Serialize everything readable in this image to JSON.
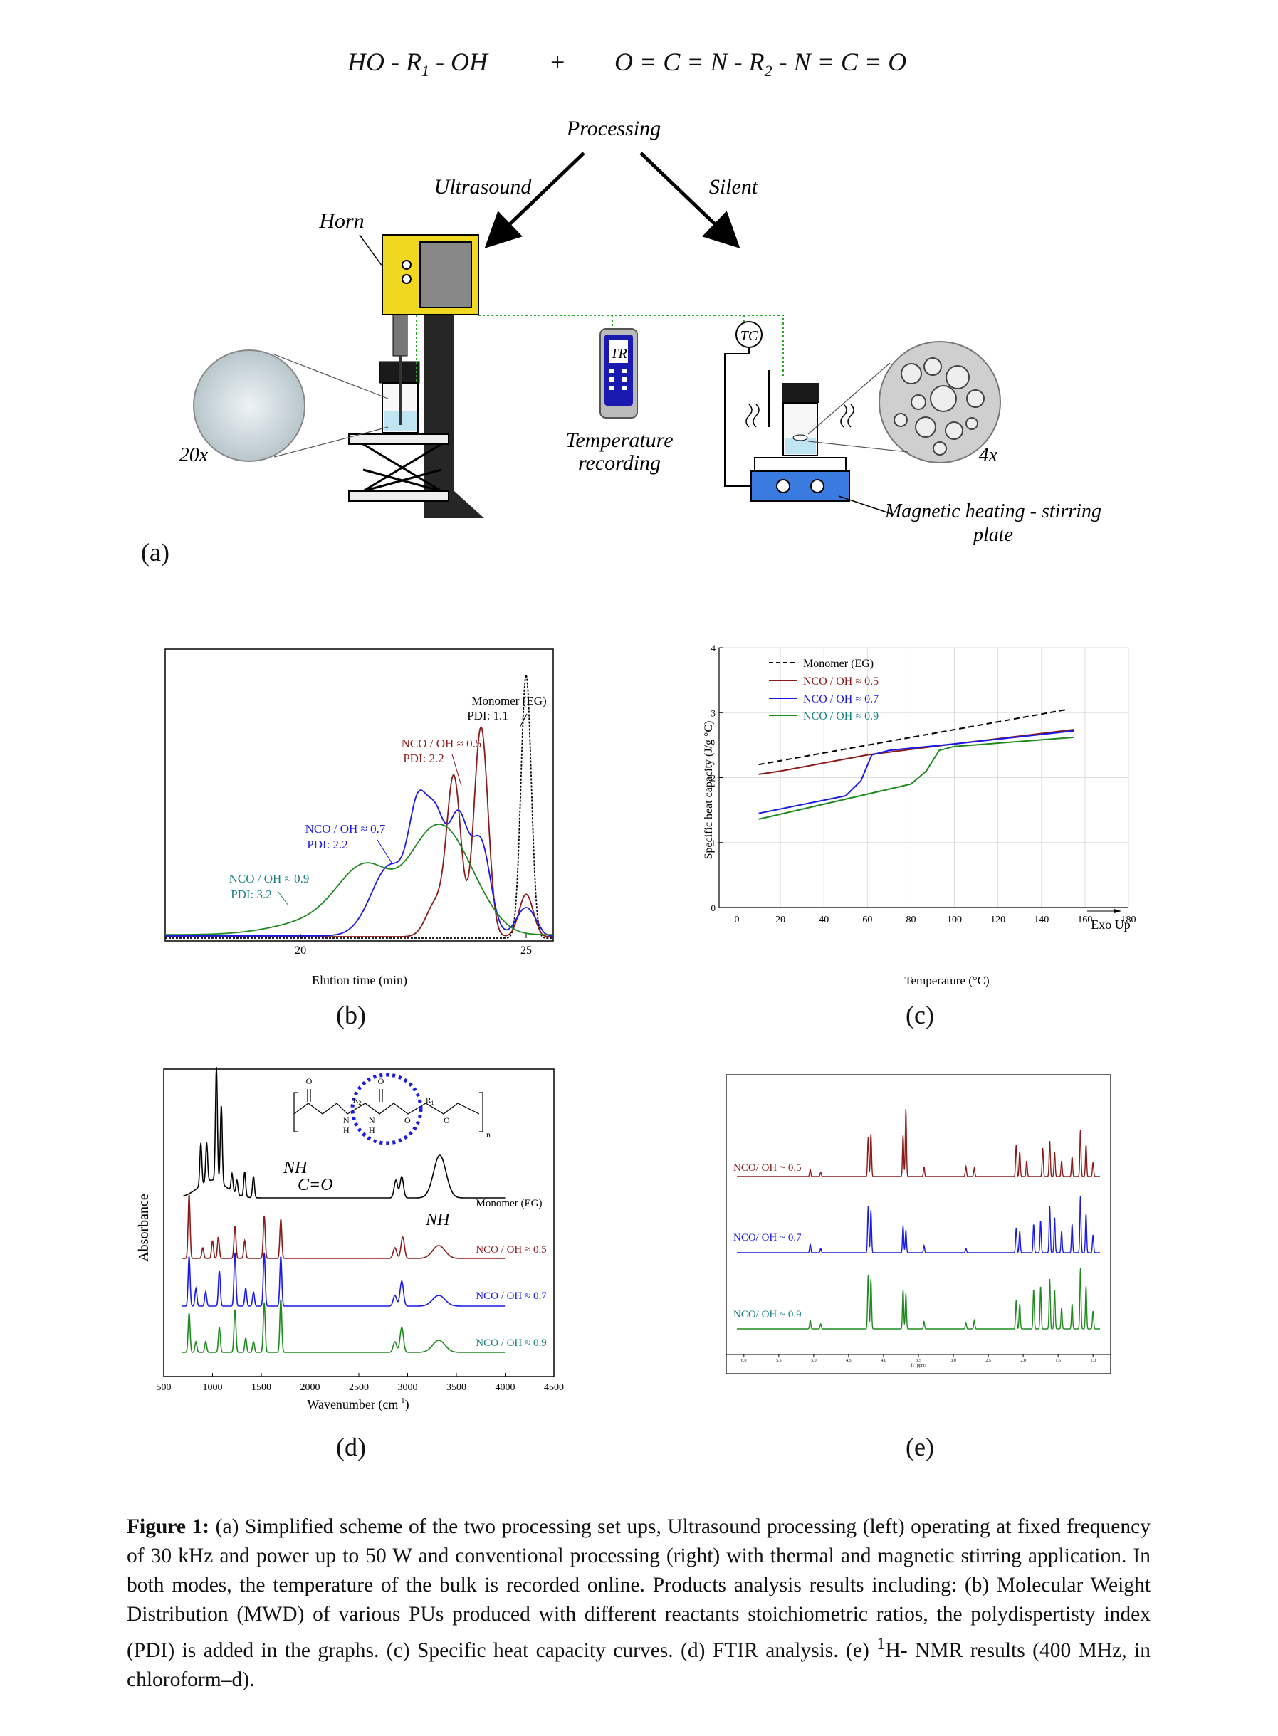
{
  "reaction": {
    "diol": "HO - R1 - OH",
    "plus": "+",
    "diisocyanate": "O = C = N - R2 - N = C = O"
  },
  "scheme": {
    "processing": "Processing",
    "ultrasound": "Ultrasound",
    "silent": "Silent",
    "horn": "Horn",
    "tr": "TR",
    "tc": "TC",
    "temperature_recording_line1": "Temperature",
    "temperature_recording_line2": "recording",
    "mag_1": "Magnetic heating - stirring",
    "mag_2": "plate",
    "zoom_left": "20x",
    "zoom_right": "4x",
    "panel": "(a)"
  },
  "panels": {
    "b": "(b)",
    "c": "(c)",
    "d": "(d)",
    "e": "(e)"
  },
  "colors": {
    "red": "#8b1a1a",
    "blue": "#1a1ae6",
    "green": "#1e8a1e",
    "teal": "#1a8080",
    "black": "#000000",
    "yellow": "#f0d820"
  },
  "chart_data": [
    {
      "id": "b",
      "type": "line",
      "xlabel": "Elution time (min)",
      "xlim": [
        17,
        25.6
      ],
      "ylim": [
        0,
        1
      ],
      "xticks": [
        "20",
        "25"
      ],
      "series": [
        {
          "name": "Monomer (EG)",
          "pdi": "PDI: 1.1",
          "peaks": [
            [
              25.0,
              0.93
            ]
          ]
        },
        {
          "name": "NCO / OH ≈ 0.5",
          "pdi": "PDI: 2.2",
          "peaks": [
            [
              23.4,
              0.55
            ],
            [
              24.0,
              0.74
            ],
            [
              25.0,
              0.15
            ]
          ]
        },
        {
          "name": "NCO / OH ≈ 0.7",
          "pdi": "PDI: 2.2",
          "peaks": [
            [
              22.6,
              0.35
            ],
            [
              23.0,
              0.38
            ],
            [
              23.5,
              0.4
            ],
            [
              24.0,
              0.32
            ],
            [
              25.0,
              0.1
            ]
          ]
        },
        {
          "name": "NCO / OH ≈ 0.9",
          "pdi": "PDI: 3.2",
          "peaks": [
            [
              21.5,
              0.22
            ],
            [
              22.7,
              0.2
            ],
            [
              23.2,
              0.17
            ],
            [
              23.5,
              0.12
            ],
            [
              24.0,
              0.08
            ]
          ]
        }
      ]
    },
    {
      "id": "c",
      "type": "line",
      "xlabel": "Temperature (°C)",
      "ylabel": "Specific heat capacity (J/g °C)",
      "xlim": [
        0,
        180
      ],
      "ylim": [
        0,
        4
      ],
      "xticks": [
        "0",
        "20",
        "40",
        "60",
        "80",
        "100",
        "120",
        "140",
        "160",
        "180"
      ],
      "yticks": [
        "0",
        "1",
        "2",
        "3",
        "4"
      ],
      "annotation": "Exo Up",
      "series": [
        {
          "name": "Monomer (EG)",
          "x": [
            10,
            152
          ],
          "y": [
            2.2,
            3.05
          ]
        },
        {
          "name": "NCO / OH ≈ 0.5",
          "x": [
            10,
            20,
            60,
            100,
            155
          ],
          "y": [
            2.05,
            2.1,
            2.35,
            2.52,
            2.74
          ]
        },
        {
          "name": "NCO / OH ≈ 0.7",
          "x": [
            10,
            50,
            57,
            62,
            70,
            100,
            155
          ],
          "y": [
            1.45,
            1.72,
            1.95,
            2.35,
            2.42,
            2.52,
            2.72
          ]
        },
        {
          "name": "NCO / OH ≈ 0.9",
          "x": [
            10,
            80,
            87,
            93,
            100,
            155
          ],
          "y": [
            1.36,
            1.9,
            2.1,
            2.42,
            2.48,
            2.62
          ]
        }
      ]
    },
    {
      "id": "d",
      "type": "line",
      "xlabel": "Wavenumber (cm-1)",
      "ylabel": "Absorbance",
      "xlim": [
        500,
        4500
      ],
      "xticks": [
        "500",
        "1000",
        "1500",
        "2000",
        "2500",
        "3000",
        "3500",
        "4000",
        "4500"
      ],
      "annotations": [
        "NH",
        "C=O",
        "NH"
      ],
      "series": [
        {
          "name": "Monomer (EG)"
        },
        {
          "name": "NCO / OH ≈ 0.5"
        },
        {
          "name": "NCO / OH ≈ 0.7"
        },
        {
          "name": "NCO / OH ≈ 0.9"
        }
      ]
    },
    {
      "id": "e",
      "type": "line",
      "xlabel": "f1 (ppm)",
      "xticks": [
        "6.0",
        "5.5",
        "5.0",
        "4.5",
        "4.0",
        "3.5",
        "3.0",
        "2.5",
        "2.0",
        "1.5",
        "1.0"
      ],
      "series": [
        {
          "name": "NCO/ OH ~ 0.5"
        },
        {
          "name": "NCO/ OH ~ 0.7"
        },
        {
          "name": "NCO/ OH ~ 0.9"
        }
      ]
    }
  ],
  "caption": {
    "label": "Figure 1:",
    "text1": " (a) Simplified scheme of the two processing set ups, Ultrasound processing (left) operating at fixed frequency of 30 kHz and power up to 50 W and conventional processing (right) with thermal and magnetic stirring application. In both modes, the temperature of the bulk is recorded online. Products analysis results including: (b) Molecular Weight Distribution (MWD) of various PUs produced with different reactants stoichiometric ratios, the polydispertisty index (PDI) is added in the graphs.  (c) Specific heat capacity curves.  (d) FTIR analysis. (e) ",
    "sup": "1",
    "text2": "H- NMR results (400 MHz, in chloroform–d)."
  }
}
